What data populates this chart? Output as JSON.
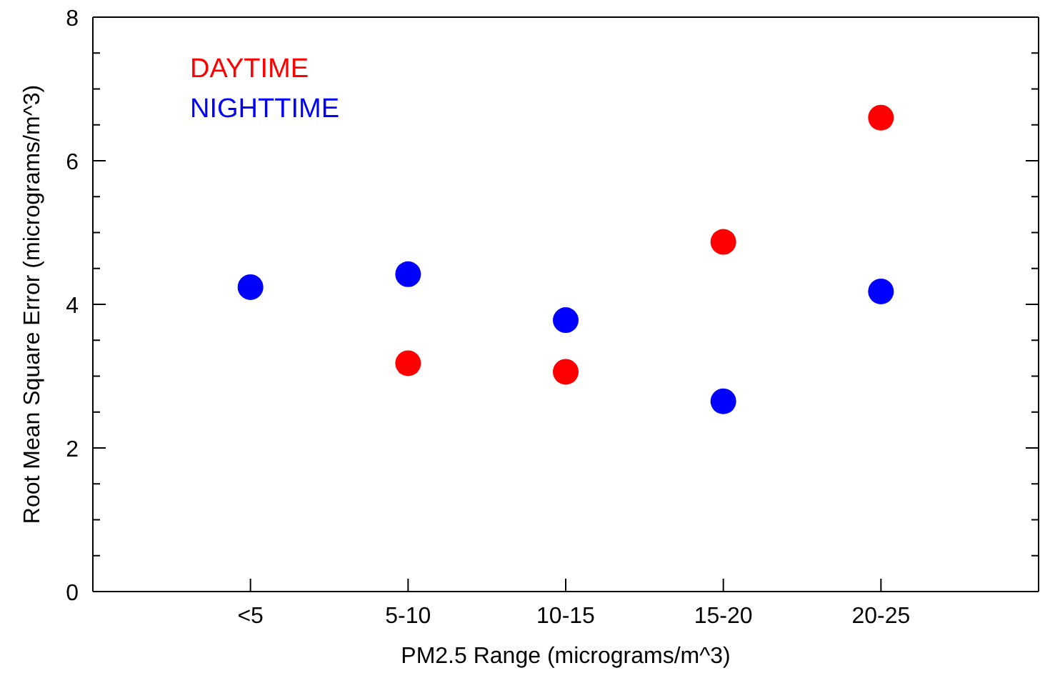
{
  "chart_data": {
    "type": "scatter",
    "xlabel": "PM2.5 Range (micrograms/m^3)",
    "ylabel": "Root Mean Square Error (micrograms/m^3)",
    "categories": [
      "<5",
      "5-10",
      "10-15",
      "15-20",
      "20-25"
    ],
    "series": [
      {
        "name": "DAYTIME",
        "color": "#ff0000",
        "values": [
          null,
          3.18,
          3.06,
          4.87,
          6.6
        ]
      },
      {
        "name": "NIGHTTIME",
        "color": "#0000ff",
        "values": [
          4.24,
          4.42,
          3.78,
          2.65,
          4.18
        ]
      }
    ],
    "ylim": [
      0,
      8
    ],
    "yticks": [
      0,
      {
        "value": 0.5,
        "label": null
      },
      {
        "value": 1,
        "label": null
      },
      {
        "value": 1.5,
        "label": null
      },
      2,
      {
        "value": 2.5,
        "label": null
      },
      {
        "value": 3,
        "label": null
      },
      {
        "value": 3.5,
        "label": null
      },
      4,
      {
        "value": 4.5,
        "label": null
      },
      {
        "value": 5,
        "label": null
      },
      {
        "value": 5.5,
        "label": null
      },
      6,
      {
        "value": 6.5,
        "label": null
      },
      {
        "value": 7,
        "label": null
      },
      {
        "value": 7.5,
        "label": null
      },
      8
    ],
    "marker": "circle",
    "legend": "top left",
    "grid": false
  }
}
